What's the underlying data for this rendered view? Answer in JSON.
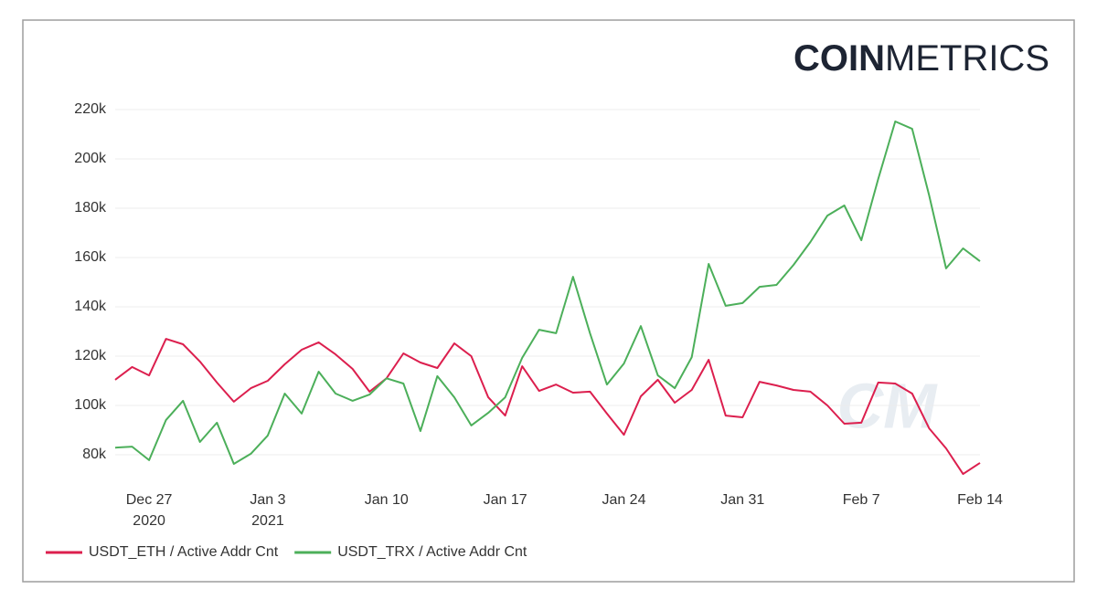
{
  "chart_data": {
    "type": "line",
    "logo": {
      "bold": "COIN",
      "light": "METRICS"
    },
    "watermark": "CM",
    "x": [
      "2020-12-25",
      "2020-12-26",
      "2020-12-27",
      "2020-12-28",
      "2020-12-29",
      "2020-12-30",
      "2020-12-31",
      "2021-01-01",
      "2021-01-02",
      "2021-01-03",
      "2021-01-04",
      "2021-01-05",
      "2021-01-06",
      "2021-01-07",
      "2021-01-08",
      "2021-01-09",
      "2021-01-10",
      "2021-01-11",
      "2021-01-12",
      "2021-01-13",
      "2021-01-14",
      "2021-01-15",
      "2021-01-16",
      "2021-01-17",
      "2021-01-18",
      "2021-01-19",
      "2021-01-20",
      "2021-01-21",
      "2021-01-22",
      "2021-01-23",
      "2021-01-24",
      "2021-01-25",
      "2021-01-26",
      "2021-01-27",
      "2021-01-28",
      "2021-01-29",
      "2021-01-30",
      "2021-01-31",
      "2021-02-01",
      "2021-02-02",
      "2021-02-03",
      "2021-02-04",
      "2021-02-05",
      "2021-02-06",
      "2021-02-07",
      "2021-02-08",
      "2021-02-09",
      "2021-02-10",
      "2021-02-11",
      "2021-02-12",
      "2021-02-13",
      "2021-02-14"
    ],
    "xlim": [
      "2020-12-25",
      "2021-02-14"
    ],
    "xticks": [
      {
        "value": "2020-12-27",
        "label": "Dec 27",
        "year": "2020"
      },
      {
        "value": "2021-01-03",
        "label": "Jan 3",
        "year": "2021"
      },
      {
        "value": "2021-01-10",
        "label": "Jan 10"
      },
      {
        "value": "2021-01-17",
        "label": "Jan 17"
      },
      {
        "value": "2021-01-24",
        "label": "Jan 24"
      },
      {
        "value": "2021-01-31",
        "label": "Jan 31"
      },
      {
        "value": "2021-02-07",
        "label": "Feb 7"
      },
      {
        "value": "2021-02-14",
        "label": "Feb 14"
      }
    ],
    "ylim": [
      70000,
      225000
    ],
    "yticks": [
      {
        "value": 80000,
        "label": "80k"
      },
      {
        "value": 100000,
        "label": "100k"
      },
      {
        "value": 120000,
        "label": "120k"
      },
      {
        "value": 140000,
        "label": "140k"
      },
      {
        "value": 160000,
        "label": "160k"
      },
      {
        "value": 180000,
        "label": "180k"
      },
      {
        "value": 200000,
        "label": "200k"
      },
      {
        "value": 220000,
        "label": "220k"
      }
    ],
    "grid": true,
    "legend": "bottom-left",
    "series": [
      {
        "name": "USDT_ETH / Active Addr Cnt",
        "color": "#dc1f4e",
        "values": [
          110400,
          115600,
          112200,
          127000,
          124800,
          117800,
          109300,
          101500,
          107000,
          110000,
          116700,
          122600,
          125600,
          120700,
          114800,
          105600,
          111000,
          121100,
          117400,
          115200,
          125200,
          120000,
          103300,
          95900,
          115900,
          105900,
          108500,
          105200,
          105600,
          96700,
          88100,
          103700,
          110400,
          101100,
          106300,
          118500,
          95900,
          95200,
          109600,
          108100,
          106300,
          105600,
          100000,
          92600,
          93000,
          109300,
          108900,
          104800,
          90700,
          82600,
          72200,
          76700
        ]
      },
      {
        "name": "USDT_TRX / Active Addr Cnt",
        "color": "#4caf5a",
        "values": [
          82900,
          83300,
          77800,
          94100,
          101900,
          85200,
          93000,
          76300,
          80400,
          87800,
          104800,
          96700,
          113700,
          104800,
          101900,
          104400,
          111000,
          108900,
          89600,
          111900,
          103300,
          91900,
          97000,
          103300,
          119300,
          130700,
          129300,
          152200,
          129300,
          108500,
          117000,
          132200,
          112200,
          107000,
          119600,
          157400,
          140400,
          141500,
          148100,
          148900,
          157000,
          166300,
          177000,
          181100,
          167000,
          191900,
          215200,
          212200,
          185200,
          155600,
          163700,
          158500
        ]
      }
    ]
  }
}
